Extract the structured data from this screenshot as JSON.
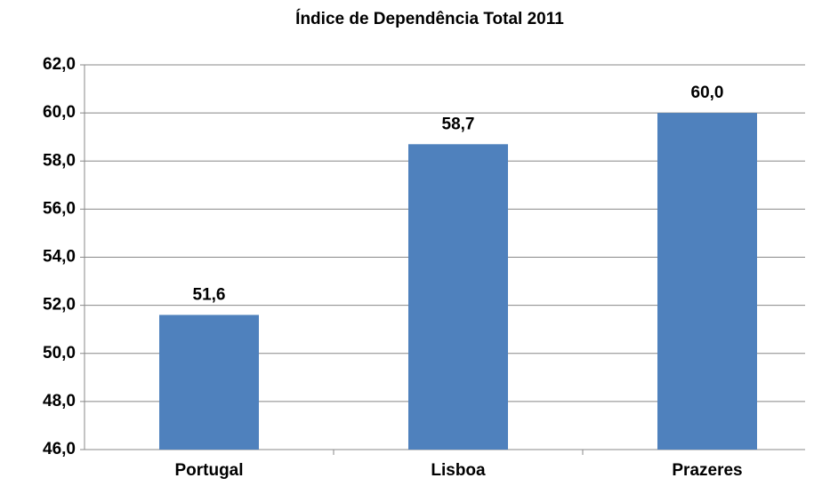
{
  "chart_data": {
    "type": "bar",
    "title": "Índice de Dependência Total 2011",
    "categories": [
      "Portugal",
      "Lisboa",
      "Prazeres"
    ],
    "values": [
      51.6,
      58.7,
      60.0
    ],
    "value_labels": [
      "51,6",
      "58,7",
      "60,0"
    ],
    "color": "#4f81bd",
    "ylim": [
      46,
      62
    ],
    "yticks": [
      {
        "value": 46,
        "label": "46,0"
      },
      {
        "value": 48,
        "label": "48,0"
      },
      {
        "value": 50,
        "label": "50,0"
      },
      {
        "value": 52,
        "label": "52,0"
      },
      {
        "value": 54,
        "label": "54,0"
      },
      {
        "value": 56,
        "label": "56,0"
      },
      {
        "value": 58,
        "label": "58,0"
      },
      {
        "value": 60,
        "label": "60,0"
      },
      {
        "value": 62,
        "label": "62,0"
      }
    ],
    "grid": true
  }
}
